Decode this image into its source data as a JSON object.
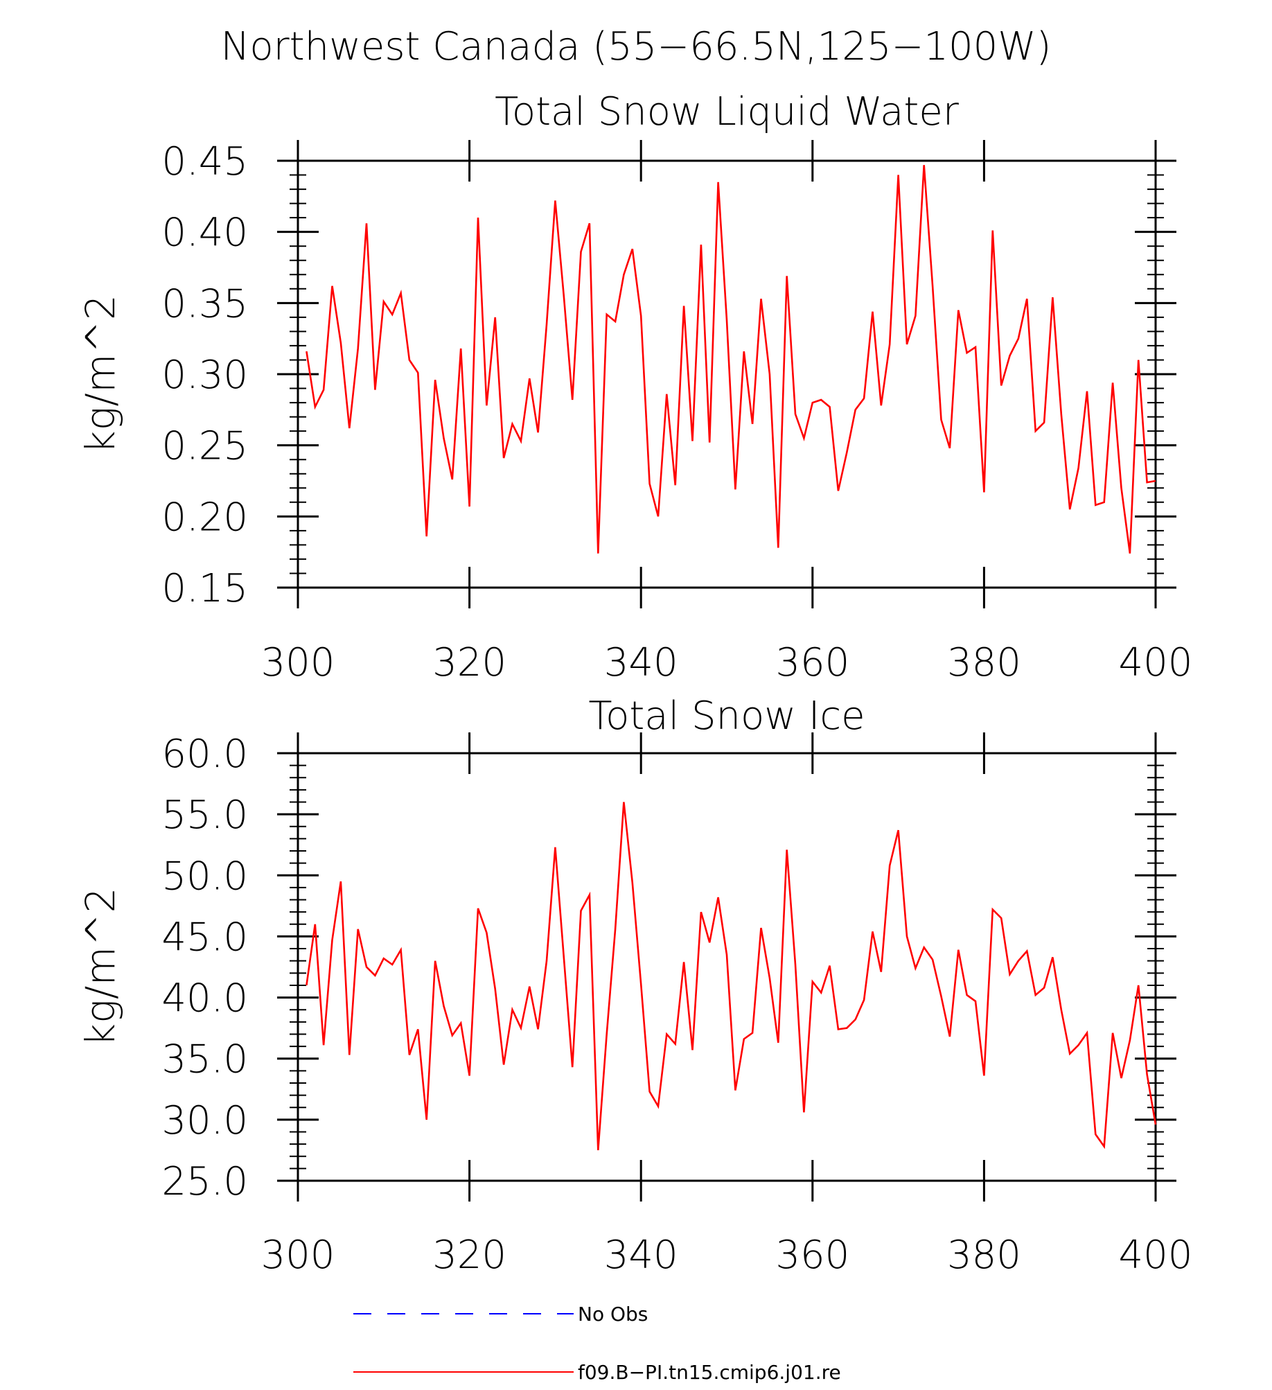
{
  "page_title": "Northwest Canada (55−66.5N,125−100W)",
  "legend": [
    {
      "label": "No Obs",
      "color": "#0000ff",
      "dash": true
    },
    {
      "label": "f09.B−PI.tn15.cmip6.j01.re",
      "color": "#ff0000",
      "dash": false
    }
  ],
  "chart_data": [
    {
      "type": "line",
      "title": "Total Snow Liquid Water",
      "xlabel": "",
      "ylabel": "kg/m^2",
      "xlim": [
        300,
        400
      ],
      "ylim": [
        0.15,
        0.45
      ],
      "xticks": [
        "300",
        "320",
        "340",
        "360",
        "380",
        "400"
      ],
      "yticks": [
        "0.15",
        "0.20",
        "0.25",
        "0.30",
        "0.35",
        "0.40",
        "0.45"
      ],
      "series": [
        {
          "name": "f09.B−PI.tn15.cmip6.j01.re",
          "color": "#ff0000",
          "x": [
            301,
            302,
            303,
            304,
            305,
            306,
            307,
            308,
            309,
            310,
            311,
            312,
            313,
            314,
            315,
            316,
            317,
            318,
            319,
            320,
            321,
            322,
            323,
            324,
            325,
            326,
            327,
            328,
            329,
            330,
            331,
            332,
            333,
            334,
            335,
            336,
            337,
            338,
            339,
            340,
            341,
            342,
            343,
            344,
            345,
            346,
            347,
            348,
            349,
            350,
            351,
            352,
            353,
            354,
            355,
            356,
            357,
            358,
            359,
            360,
            361,
            362,
            363,
            364,
            365,
            366,
            367,
            368,
            369,
            370,
            371,
            372,
            373,
            374,
            375,
            376,
            377,
            378,
            379,
            380,
            381,
            382,
            383,
            384,
            385,
            386,
            387,
            388,
            389,
            390,
            391,
            392,
            393,
            394,
            395,
            396,
            397,
            398,
            399,
            400
          ],
          "y": [
            0.316,
            0.277,
            0.289,
            0.362,
            0.322,
            0.262,
            0.318,
            0.406,
            0.289,
            0.351,
            0.342,
            0.357,
            0.31,
            0.301,
            0.186,
            0.296,
            0.255,
            0.226,
            0.318,
            0.207,
            0.41,
            0.278,
            0.34,
            0.241,
            0.265,
            0.253,
            0.297,
            0.259,
            0.335,
            0.422,
            0.355,
            0.282,
            0.386,
            0.406,
            0.174,
            0.342,
            0.337,
            0.37,
            0.388,
            0.341,
            0.223,
            0.2,
            0.286,
            0.222,
            0.348,
            0.253,
            0.391,
            0.252,
            0.435,
            0.338,
            0.219,
            0.316,
            0.265,
            0.353,
            0.3,
            0.178,
            0.369,
            0.272,
            0.255,
            0.28,
            0.282,
            0.277,
            0.218,
            0.245,
            0.275,
            0.283,
            0.344,
            0.278,
            0.321,
            0.44,
            0.321,
            0.341,
            0.447,
            0.362,
            0.268,
            0.248,
            0.345,
            0.315,
            0.319,
            0.217,
            0.401,
            0.292,
            0.313,
            0.325,
            0.353,
            0.26,
            0.266,
            0.354,
            0.272,
            0.205,
            0.234,
            0.288,
            0.208,
            0.21,
            0.294,
            0.22,
            0.174,
            0.31,
            0.224,
            0.225
          ]
        }
      ]
    },
    {
      "type": "line",
      "title": "Total Snow Ice",
      "xlabel": "",
      "ylabel": "kg/m^2",
      "xlim": [
        300,
        400
      ],
      "ylim": [
        25.0,
        60.0
      ],
      "xticks": [
        "300",
        "320",
        "340",
        "360",
        "380",
        "400"
      ],
      "yticks": [
        "25.0",
        "30.0",
        "35.0",
        "40.0",
        "45.0",
        "50.0",
        "55.0",
        "60.0"
      ],
      "series": [
        {
          "name": "f09.B−PI.tn15.cmip6.j01.re",
          "color": "#ff0000",
          "x": [
            301,
            302,
            303,
            304,
            305,
            306,
            307,
            308,
            309,
            310,
            311,
            312,
            313,
            314,
            315,
            316,
            317,
            318,
            319,
            320,
            321,
            322,
            323,
            324,
            325,
            326,
            327,
            328,
            329,
            330,
            331,
            332,
            333,
            334,
            335,
            336,
            337,
            338,
            339,
            340,
            341,
            342,
            343,
            344,
            345,
            346,
            347,
            348,
            349,
            350,
            351,
            352,
            353,
            354,
            355,
            356,
            357,
            358,
            359,
            360,
            361,
            362,
            363,
            364,
            365,
            366,
            367,
            368,
            369,
            370,
            371,
            372,
            373,
            374,
            375,
            376,
            377,
            378,
            379,
            380,
            381,
            382,
            383,
            384,
            385,
            386,
            387,
            388,
            389,
            390,
            391,
            392,
            393,
            394,
            395,
            396,
            397,
            398,
            399,
            400
          ],
          "y": [
            41.0,
            46.0,
            36.1,
            44.7,
            49.5,
            35.3,
            45.6,
            42.5,
            41.8,
            43.2,
            42.7,
            43.9,
            35.3,
            37.4,
            30.0,
            43.0,
            39.3,
            36.9,
            37.9,
            33.6,
            47.3,
            45.3,
            40.7,
            34.5,
            39.0,
            37.5,
            40.9,
            37.4,
            43.0,
            52.3,
            43.3,
            34.3,
            47.1,
            48.4,
            27.5,
            37.0,
            45.6,
            56.0,
            49.4,
            41.1,
            32.3,
            31.1,
            37.0,
            36.2,
            42.9,
            35.7,
            47.0,
            44.5,
            48.2,
            43.5,
            32.4,
            36.6,
            37.1,
            45.7,
            41.6,
            36.3,
            52.1,
            42.7,
            30.6,
            41.3,
            40.4,
            42.6,
            37.4,
            37.5,
            38.2,
            39.8,
            45.4,
            42.1,
            50.8,
            53.7,
            45.0,
            42.4,
            44.1,
            43.1,
            40.1,
            36.8,
            43.9,
            40.2,
            39.7,
            33.6,
            47.2,
            46.5,
            41.9,
            43.0,
            43.8,
            40.2,
            40.8,
            43.3,
            39.0,
            35.4,
            36.1,
            37.1,
            28.8,
            27.8,
            37.1,
            33.4,
            36.5,
            41.0,
            33.7,
            29.6
          ]
        }
      ]
    }
  ]
}
